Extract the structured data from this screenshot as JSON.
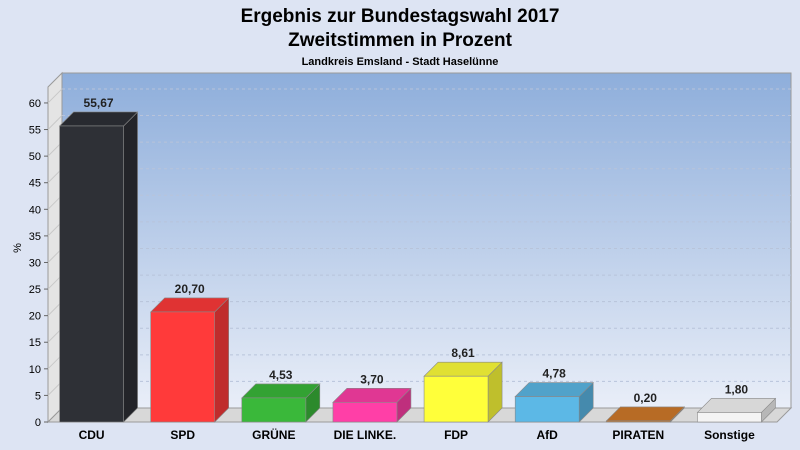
{
  "chart_data": {
    "type": "bar",
    "title": "Ergebnis zur Bundestagswahl 2017",
    "subtitle": "Zweitstimmen in Prozent",
    "caption": "Landkreis Emsland - Stadt Haselünne",
    "ylabel": "%",
    "xlabel": "",
    "ylim": [
      0,
      63
    ],
    "yticks": [
      0,
      5,
      10,
      15,
      20,
      25,
      30,
      35,
      40,
      45,
      50,
      55,
      60
    ],
    "grid": true,
    "categories": [
      "CDU",
      "SPD",
      "GRÜNE",
      "DIE LINKE.",
      "FDP",
      "AfD",
      "PIRATEN",
      "Sonstige"
    ],
    "values": [
      55.67,
      20.7,
      4.53,
      3.7,
      8.61,
      4.78,
      0.2,
      1.8
    ],
    "value_labels": [
      "55,67",
      "20,70",
      "4,53",
      "3,70",
      "8,61",
      "4,78",
      "0,20",
      "1,80"
    ],
    "colors": [
      "#2e3036",
      "#ff3a3a",
      "#3ab83a",
      "#ff3fa7",
      "#ffff3a",
      "#5cb8e6",
      "#d07a2a",
      "#f4f4f4"
    ]
  }
}
